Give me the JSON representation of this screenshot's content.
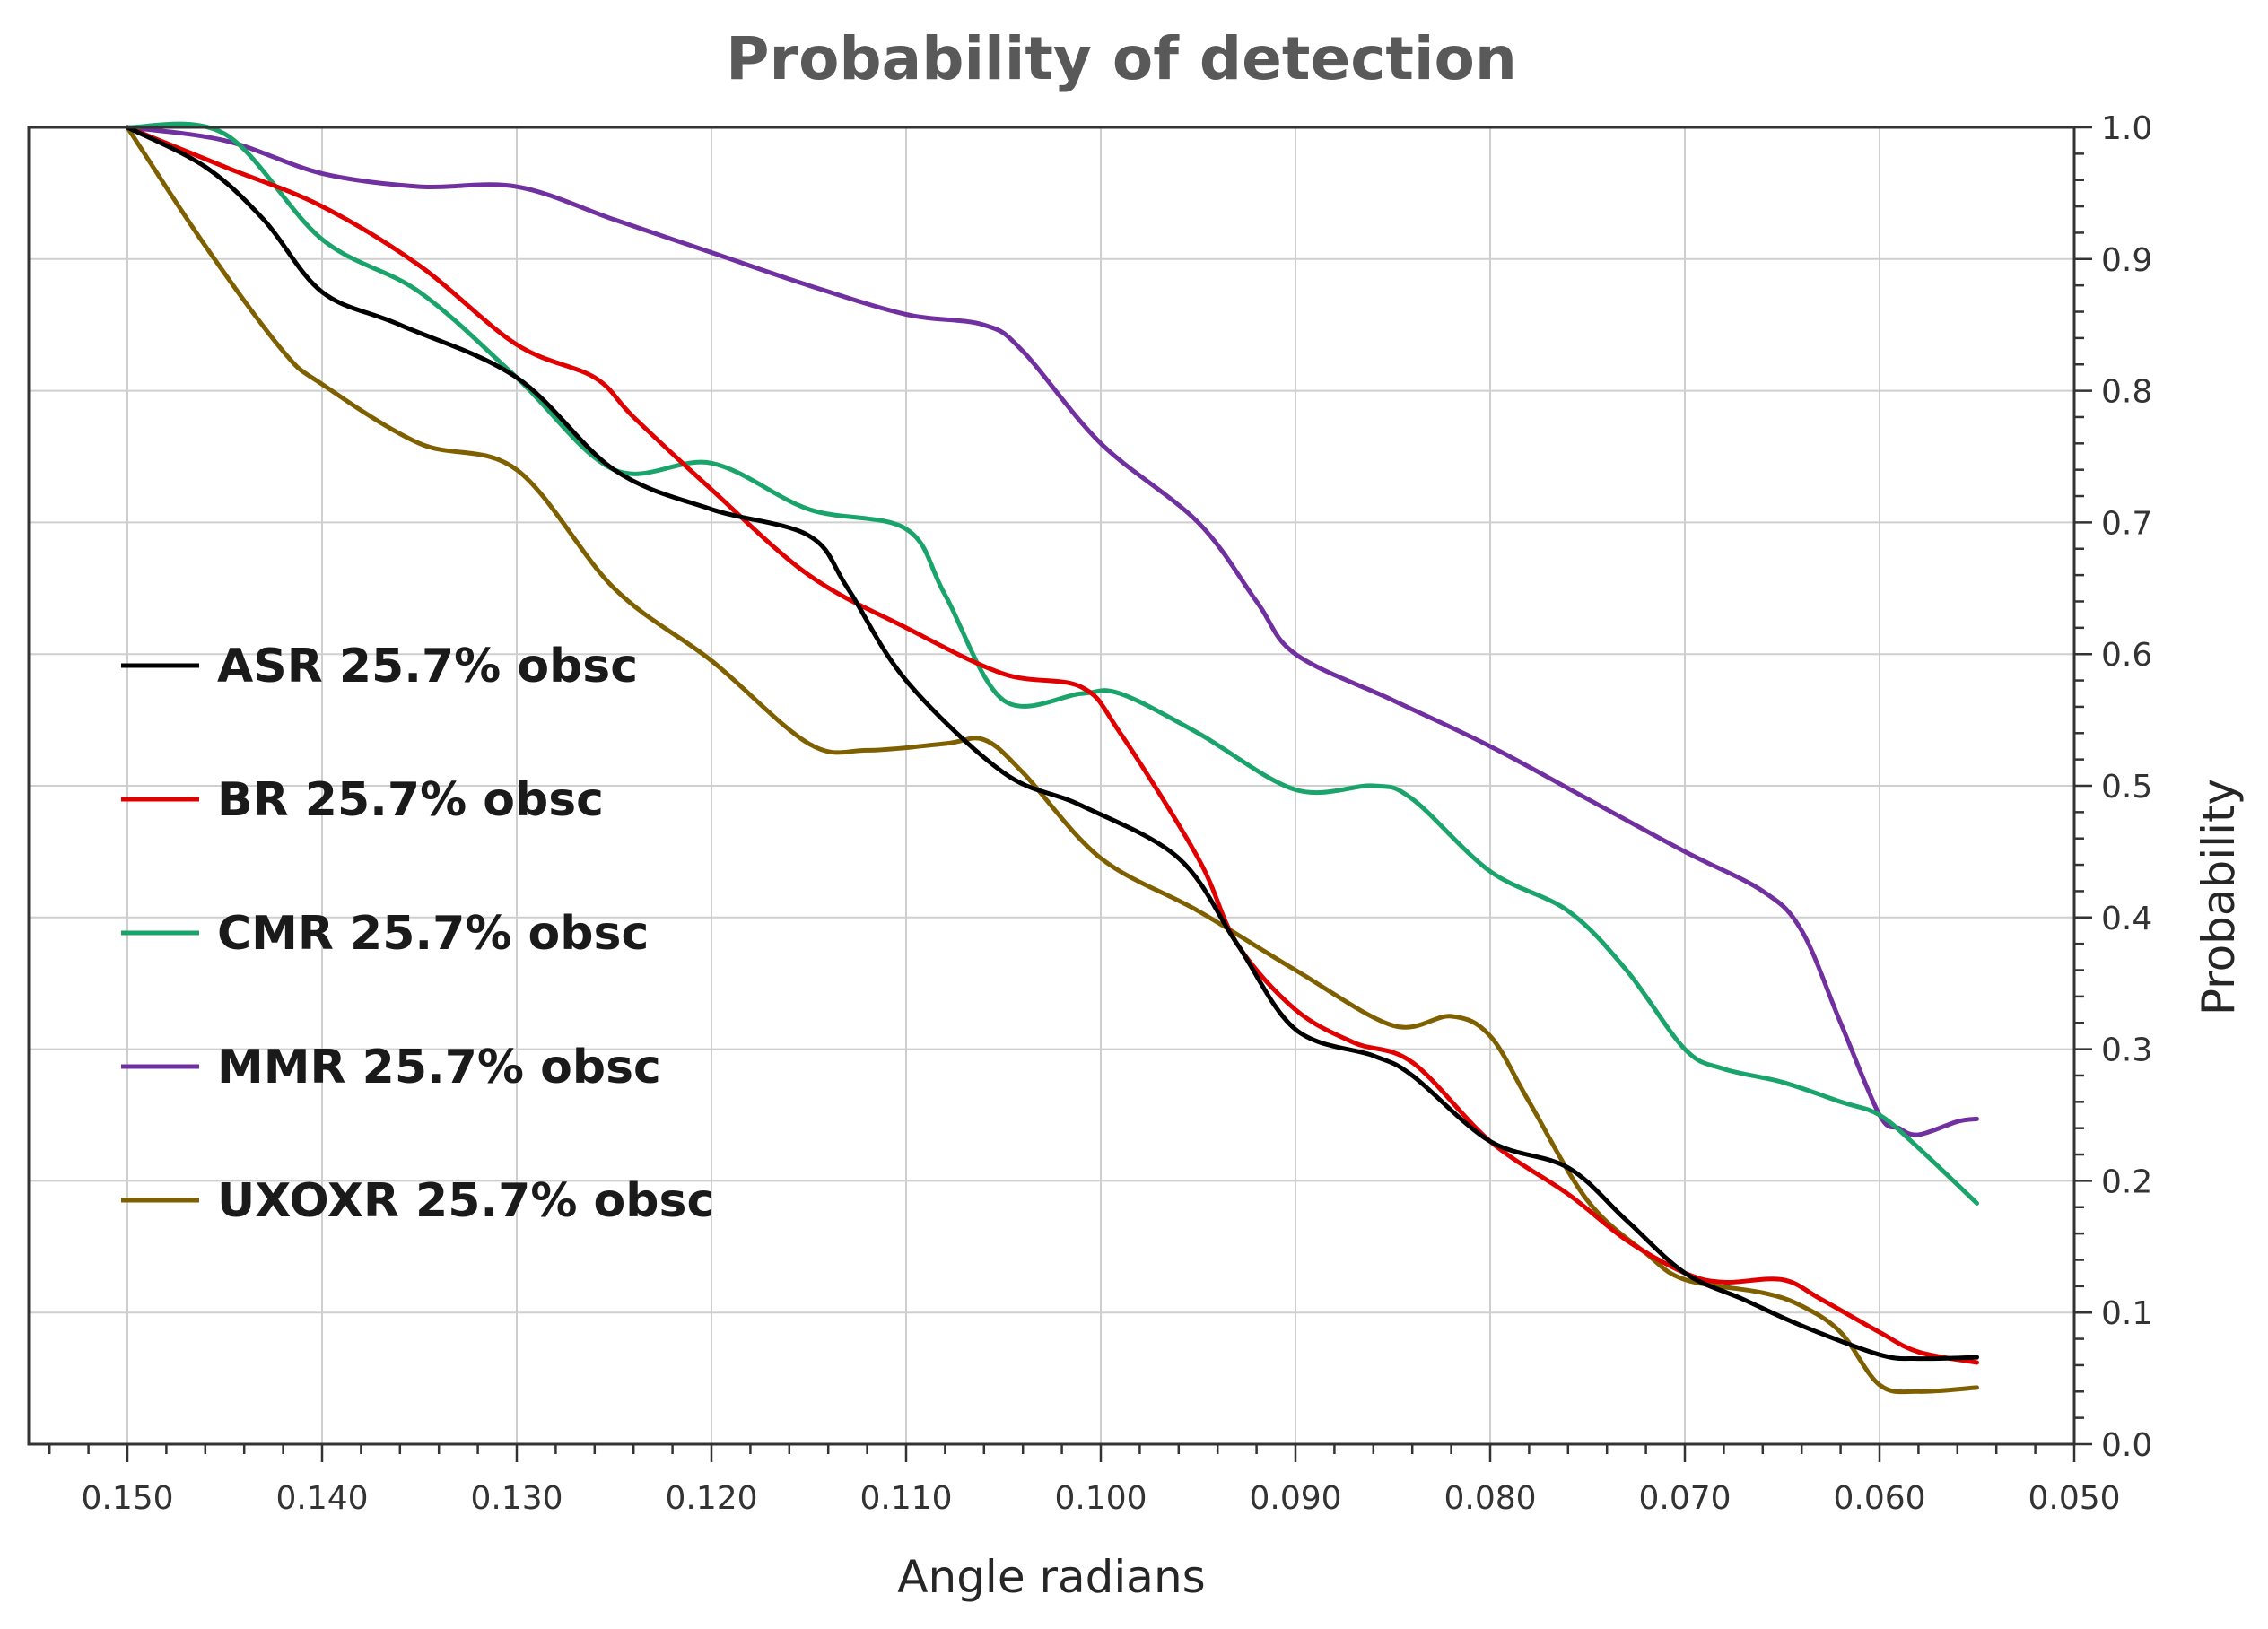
{
  "chart_data": {
    "type": "line",
    "title": "Probability of detection",
    "xlabel": "Angle radians",
    "ylabel": "Probability",
    "xlim": [
      0.15,
      0.05
    ],
    "ylim": [
      0.0,
      1.0
    ],
    "x_axis_reversed": true,
    "y_axis_side": "right",
    "grid": true,
    "legend_position": "left",
    "x_ticks": [
      "0.150",
      "0.140",
      "0.130",
      "0.120",
      "0.110",
      "0.100",
      "0.090",
      "0.080",
      "0.070",
      "0.060",
      "0.050"
    ],
    "y_ticks": [
      "0.0",
      "0.1",
      "0.2",
      "0.3",
      "0.4",
      "0.5",
      "0.6",
      "0.7",
      "0.8",
      "0.9",
      "1.0"
    ],
    "series": [
      {
        "name": "ASR 25.7% obsc",
        "color": "#000000",
        "x": [
          0.15,
          0.146,
          0.143,
          0.14,
          0.136,
          0.13,
          0.125,
          0.12,
          0.115,
          0.113,
          0.11,
          0.105,
          0.101,
          0.096,
          0.093,
          0.09,
          0.086,
          0.084,
          0.08,
          0.076,
          0.073,
          0.07,
          0.067,
          0.064,
          0.06,
          0.058,
          0.055
        ],
        "values": [
          1.0,
          0.97,
          0.93,
          0.875,
          0.85,
          0.81,
          0.74,
          0.71,
          0.69,
          0.65,
          0.58,
          0.51,
          0.485,
          0.445,
          0.38,
          0.315,
          0.295,
          0.28,
          0.23,
          0.21,
          0.17,
          0.13,
          0.11,
          0.09,
          0.068,
          0.065,
          0.066
        ]
      },
      {
        "name": "BR 25.7% obsc",
        "color": "#e00000",
        "x": [
          0.15,
          0.145,
          0.14,
          0.135,
          0.13,
          0.126,
          0.124,
          0.12,
          0.115,
          0.11,
          0.105,
          0.101,
          0.099,
          0.095,
          0.093,
          0.09,
          0.087,
          0.084,
          0.08,
          0.076,
          0.073,
          0.07,
          0.068,
          0.065,
          0.063,
          0.06,
          0.058,
          0.055
        ],
        "values": [
          1.0,
          0.97,
          0.94,
          0.895,
          0.835,
          0.81,
          0.78,
          0.725,
          0.66,
          0.62,
          0.585,
          0.575,
          0.54,
          0.445,
          0.38,
          0.33,
          0.305,
          0.29,
          0.23,
          0.19,
          0.155,
          0.13,
          0.123,
          0.125,
          0.11,
          0.085,
          0.07,
          0.062
        ]
      },
      {
        "name": "CMR 25.7% obsc",
        "color": "#1aa36a",
        "x": [
          0.15,
          0.145,
          0.14,
          0.135,
          0.13,
          0.125,
          0.12,
          0.115,
          0.11,
          0.108,
          0.105,
          0.101,
          0.099,
          0.095,
          0.09,
          0.086,
          0.084,
          0.08,
          0.076,
          0.073,
          0.07,
          0.068,
          0.065,
          0.062,
          0.06,
          0.058,
          0.055
        ],
        "values": [
          1.0,
          0.995,
          0.915,
          0.875,
          0.81,
          0.74,
          0.745,
          0.71,
          0.695,
          0.645,
          0.565,
          0.57,
          0.57,
          0.54,
          0.497,
          0.5,
          0.49,
          0.435,
          0.405,
          0.36,
          0.3,
          0.285,
          0.275,
          0.26,
          0.25,
          0.225,
          0.183
        ]
      },
      {
        "name": "MMR 25.7% obsc",
        "color": "#7030a0",
        "x": [
          0.15,
          0.145,
          0.14,
          0.135,
          0.13,
          0.125,
          0.12,
          0.115,
          0.11,
          0.106,
          0.104,
          0.1,
          0.095,
          0.092,
          0.09,
          0.085,
          0.08,
          0.075,
          0.07,
          0.066,
          0.064,
          0.062,
          0.06,
          0.059,
          0.058,
          0.056,
          0.055
        ],
        "values": [
          1.0,
          0.99,
          0.965,
          0.955,
          0.955,
          0.93,
          0.905,
          0.88,
          0.858,
          0.85,
          0.83,
          0.76,
          0.7,
          0.64,
          0.6,
          0.565,
          0.53,
          0.49,
          0.45,
          0.42,
          0.39,
          0.32,
          0.25,
          0.24,
          0.235,
          0.245,
          0.247
        ]
      },
      {
        "name": "UXOXR 25.7% obsc",
        "color": "#7f6000",
        "x": [
          0.15,
          0.146,
          0.142,
          0.14,
          0.135,
          0.13,
          0.125,
          0.12,
          0.115,
          0.112,
          0.108,
          0.106,
          0.104,
          0.1,
          0.095,
          0.09,
          0.085,
          0.082,
          0.08,
          0.078,
          0.075,
          0.072,
          0.07,
          0.066,
          0.064,
          0.062,
          0.06,
          0.058,
          0.055
        ],
        "values": [
          1.0,
          0.91,
          0.83,
          0.805,
          0.76,
          0.74,
          0.65,
          0.595,
          0.532,
          0.527,
          0.532,
          0.535,
          0.51,
          0.445,
          0.405,
          0.36,
          0.318,
          0.325,
          0.31,
          0.26,
          0.185,
          0.145,
          0.125,
          0.115,
          0.105,
          0.085,
          0.045,
          0.04,
          0.043
        ]
      }
    ]
  }
}
